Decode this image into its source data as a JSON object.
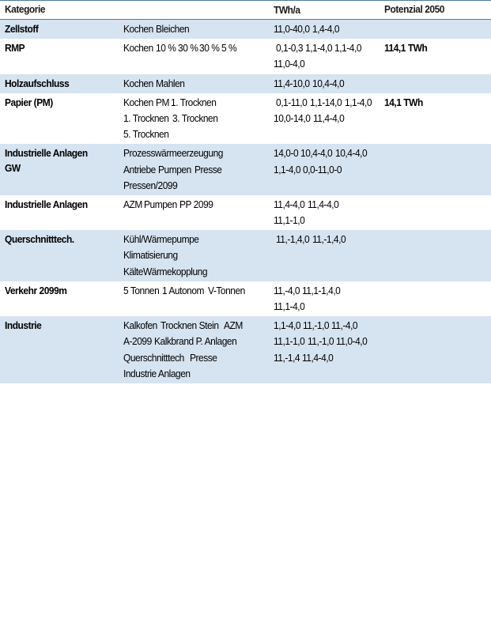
{
  "header": {
    "col1": "Kategorie",
    "col2": "",
    "col3": "TWh/a",
    "col4": "Potenzial 2050"
  },
  "columns": {
    "widths": [
      150,
      190,
      140,
      141
    ],
    "alignment": [
      "left",
      "left",
      "left",
      "left"
    ]
  },
  "styling": {
    "band_blue": "#d6e3f0",
    "band_white": "#ffffff",
    "border_color": "#4a7ba6",
    "text_color": "#1a1a1a",
    "font_size": 13,
    "font_family": "Arial Narrow",
    "header_fontweight": "bold",
    "category_fontweight": "bold"
  },
  "groups": [
    {
      "band": "blue",
      "category": "Zellstoff",
      "note": "",
      "rows": [
        {
          "sub": "Kochen",
          "val": "11,0-40,0"
        },
        {
          "sub": "Bleichen",
          "val": "1,4-4,0"
        }
      ]
    },
    {
      "band": "white",
      "category": "RMP",
      "note": "114,1 TWh",
      "rows": [
        {
          "sub": "Kochen",
          "val": ""
        },
        {
          "sub": "10 %",
          "val": "0,1-0,3"
        },
        {
          "sub": "30 %",
          "val": "1,1-4,0"
        },
        {
          "sub": "30 %",
          "val": "1,1-4,0"
        },
        {
          "sub": "5 %",
          "val": "11,0-4,0"
        }
      ]
    },
    {
      "band": "blue",
      "category": "Holzaufschluss",
      "note": "",
      "rows": [
        {
          "sub": "Kochen",
          "val": "11,4-10,0"
        },
        {
          "sub": "Mahlen",
          "val": "10,4-4,0"
        }
      ]
    },
    {
      "band": "white",
      "category": "Papier (PM)",
      "note": "14,1 TWh",
      "rows": [
        {
          "sub": "Kochen",
          "val": ""
        },
        {
          "sub": "PM",
          "val": "0,1-11,0"
        },
        {
          "sub": "1. Trocknen",
          "val": "1,1-14,0"
        },
        {
          "sub": "1. Trocknen",
          "val": "1,1-4,0"
        },
        {
          "sub": "3. Trocknen",
          "val": "10,0-14,0"
        },
        {
          "sub": "5. Trocknen",
          "val": "11,4-4,0"
        }
      ]
    },
    {
      "band": "blue",
      "category": "Industrielle Anlagen GW",
      "note": "",
      "rows": [
        {
          "sub": "Prozesswärmeerzeugung",
          "val": "14,0-0"
        },
        {
          "sub": "Antriebe",
          "val": "10,4-4,0"
        },
        {
          "sub": "Pumpen",
          "val": "10,4-4,0"
        },
        {
          "sub": "Presse",
          "val": "1,1-4,0"
        },
        {
          "sub": "Pressen/2099",
          "val": "0,0-11,0-0"
        }
      ]
    },
    {
      "band": "white",
      "category": "Industrielle Anlagen",
      "note": "",
      "rows": [
        {
          "sub": "AZM",
          "val": "11,4-4,0"
        },
        {
          "sub": "Pumpen",
          "val": "11,4-4,0"
        },
        {
          "sub": "PP 2099",
          "val": "11,1-1,0"
        }
      ]
    },
    {
      "band": "blue",
      "category": "Querschnitttech.",
      "note": "",
      "rows": [
        {
          "sub": "Kühl/Wärmepumpe",
          "val": ""
        },
        {
          "sub": "Klimatisierung",
          "val": "11,-1,4,0"
        },
        {
          "sub": "KälteWärmekopplung",
          "val": "11,-1,4,0"
        }
      ]
    },
    {
      "band": "white",
      "category": "Verkehr 2099m",
      "note": "",
      "rows": [
        {
          "sub": "5 Tonnen",
          "val": "11,-4,0"
        },
        {
          "sub": "1 Autonom",
          "val": "11,1-1,4,0"
        },
        {
          "sub": "V-Tonnen",
          "val": "11,1-4,0"
        }
      ]
    },
    {
      "band": "blue",
      "category": "Industrie",
      "note": "",
      "rows": [
        {
          "sub": "Kalkofen",
          "val": "1,1-4,0"
        },
        {
          "sub": "Trocknen Stein",
          "val": "11,-1,0"
        },
        {
          "sub": "AZM",
          "val": "11,-4,0"
        },
        {
          "sub": "A-2099",
          "val": "11,1-1,0"
        },
        {
          "sub": "Kalkbrand P. Anlagen",
          "val": "11,-1,0"
        },
        {
          "sub": "Querschnitttech",
          "val": "11,0-4,0"
        },
        {
          "sub": "Presse",
          "val": "11,-1,4"
        },
        {
          "sub": "Industrie Anlagen",
          "val": "11,4-4,0"
        }
      ]
    }
  ]
}
